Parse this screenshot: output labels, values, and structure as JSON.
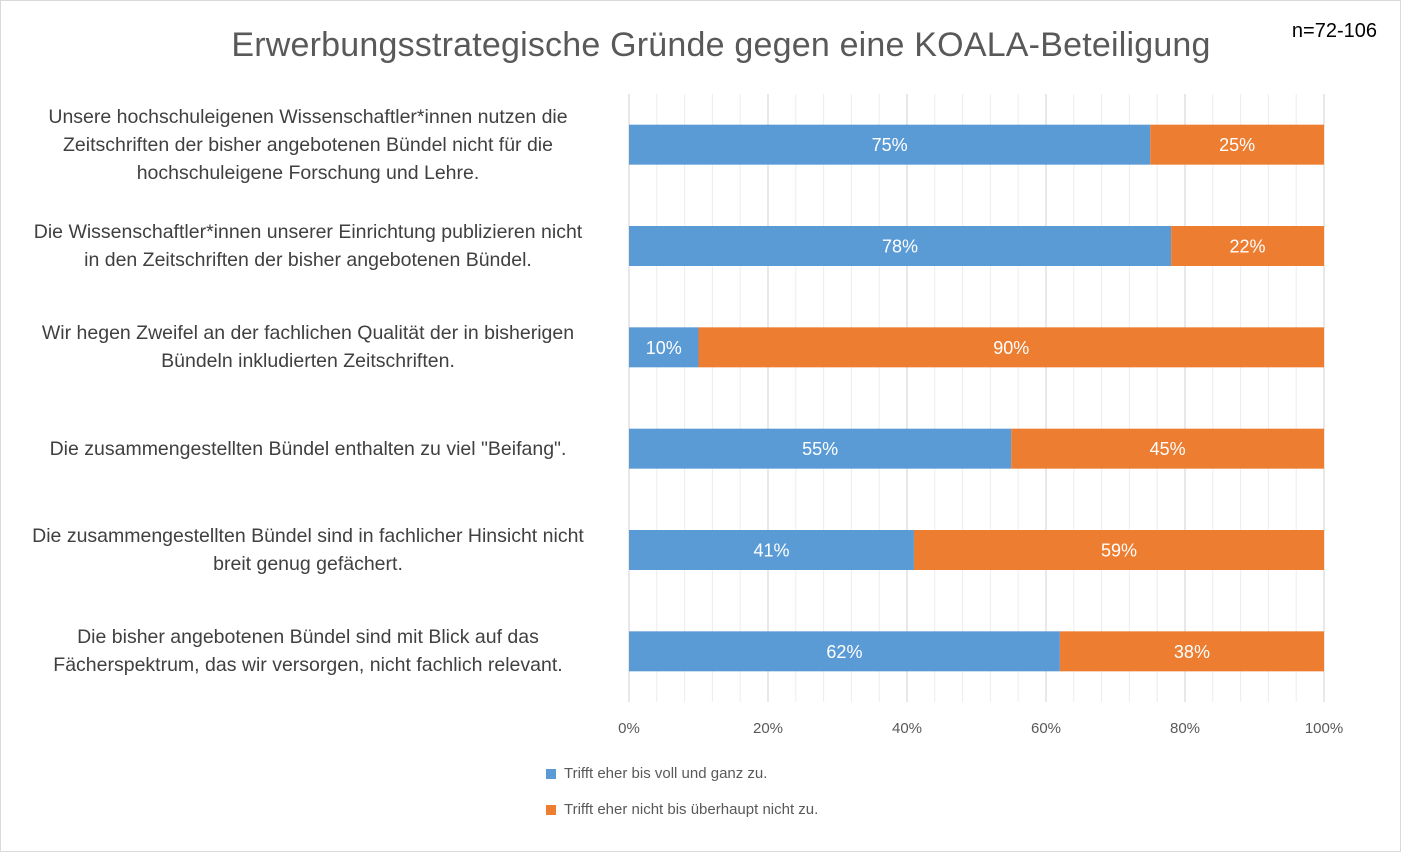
{
  "chart_data": {
    "type": "bar",
    "orientation": "horizontal",
    "stacked": true,
    "percent_stacked": true,
    "title": "Erwerbungsstrategische Gründe gegen eine KOALA-Beteiligung",
    "annotation": "n=72-106",
    "categories": [
      [
        "Unsere hochschuleigenen Wissenschaftler*innen nutzen die",
        "Zeitschriften der bisher angebotenen Bündel nicht für die",
        "hochschuleigene Forschung und Lehre."
      ],
      [
        "Die Wissenschaftler*innen unserer Einrichtung publizieren nicht",
        "in den Zeitschriften der bisher angebotenen Bündel."
      ],
      [
        "Wir hegen Zweifel an der fachlichen Qualität der in bisherigen",
        "Bündeln inkludierten Zeitschriften."
      ],
      [
        "Die zusammengestellten Bündel enthalten zu viel \"Beifang\"."
      ],
      [
        "Die zusammengestellten Bündel sind in fachlicher Hinsicht nicht",
        "breit genug gefächert."
      ],
      [
        "Die bisher angebotenen Bündel sind mit Blick auf das",
        "Fächerspektrum, das wir versorgen, nicht fachlich relevant."
      ]
    ],
    "series": [
      {
        "name": "Trifft eher bis voll und ganz zu.",
        "color": "#5b9bd5",
        "values": [
          75,
          78,
          10,
          55,
          41,
          62
        ],
        "labels": [
          "75%",
          "78%",
          "10%",
          "55%",
          "41%",
          "62%"
        ]
      },
      {
        "name": "Trifft eher nicht bis überhaupt nicht zu.",
        "color": "#ed7d31",
        "values": [
          25,
          22,
          90,
          45,
          59,
          38
        ],
        "labels": [
          "25%",
          "22%",
          "90%",
          "45%",
          "59%",
          "38%"
        ]
      }
    ],
    "xlim": [
      0,
      100
    ],
    "xticks": [
      "0%",
      "20%",
      "40%",
      "60%",
      "80%",
      "100%"
    ],
    "grid": true,
    "legend": "bottom"
  }
}
